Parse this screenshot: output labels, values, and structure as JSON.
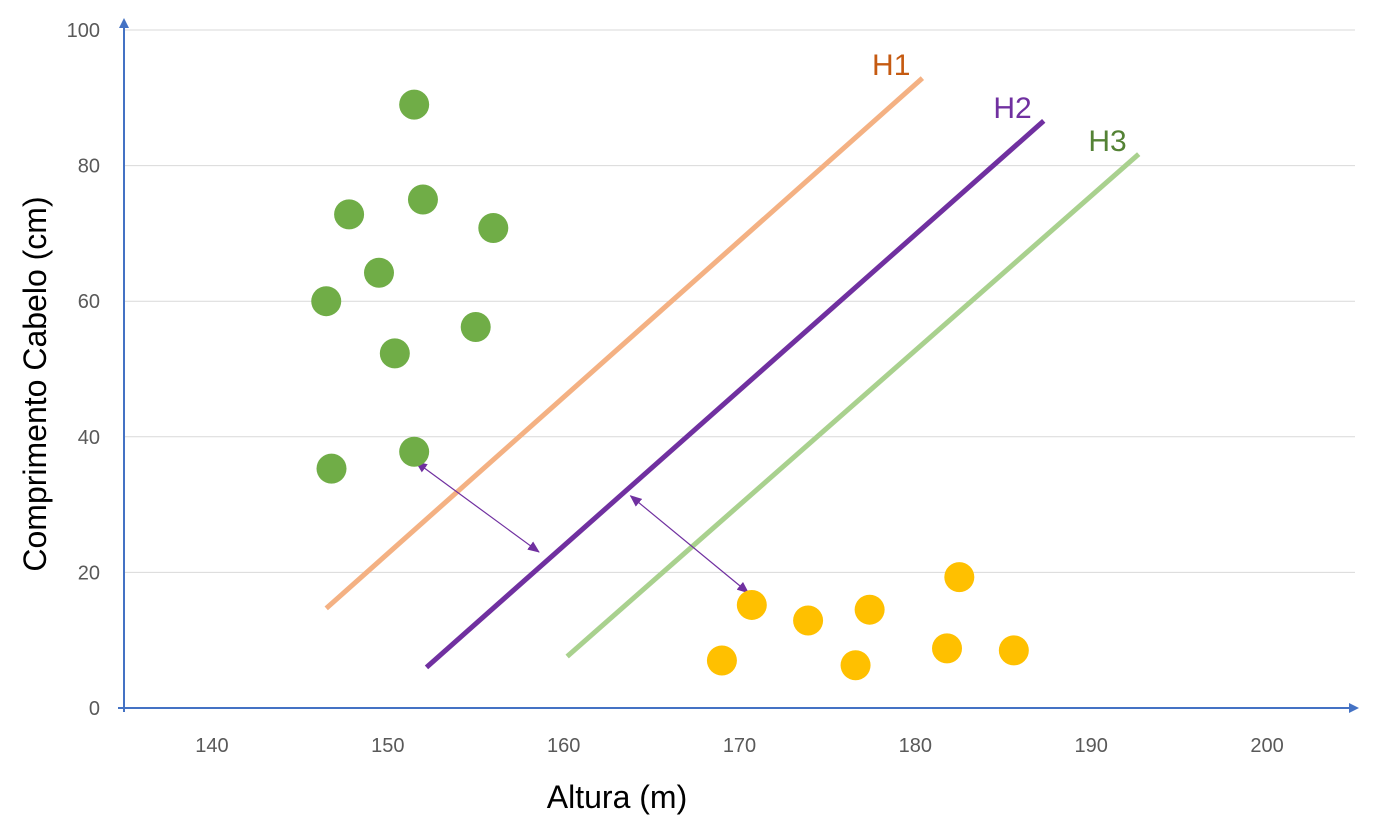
{
  "chart_data": {
    "type": "scatter",
    "xlabel": "Altura (m)",
    "ylabel": "Comprimento Cabelo (cm)",
    "xlim": [
      135,
      205
    ],
    "ylim": [
      0,
      100
    ],
    "x_ticks": [
      140,
      150,
      160,
      170,
      180,
      190,
      200
    ],
    "y_ticks": [
      0,
      20,
      40,
      60,
      80,
      100
    ],
    "grid": "horizontal",
    "series": [
      {
        "color": "#70AD47",
        "points": [
          {
            "x": 151.5,
            "y": 89
          },
          {
            "x": 152.0,
            "y": 75
          },
          {
            "x": 147.8,
            "y": 72.8
          },
          {
            "x": 156.0,
            "y": 70.8
          },
          {
            "x": 149.5,
            "y": 64.2
          },
          {
            "x": 146.5,
            "y": 60
          },
          {
            "x": 155.0,
            "y": 56.2
          },
          {
            "x": 150.4,
            "y": 52.3
          },
          {
            "x": 151.5,
            "y": 37.8
          },
          {
            "x": 146.8,
            "y": 35.3
          }
        ]
      },
      {
        "color": "#FFC000",
        "points": [
          {
            "x": 182.5,
            "y": 19.3
          },
          {
            "x": 170.7,
            "y": 15.2
          },
          {
            "x": 177.4,
            "y": 14.5
          },
          {
            "x": 173.9,
            "y": 12.9
          },
          {
            "x": 181.8,
            "y": 8.8
          },
          {
            "x": 185.6,
            "y": 8.5
          },
          {
            "x": 169.0,
            "y": 7.0
          },
          {
            "x": 176.6,
            "y": 6.3
          }
        ]
      }
    ],
    "lines": [
      {
        "label": "H1",
        "color": "#F4B183",
        "label_color": "#C55A11",
        "stroke": 5,
        "x1": 146.5,
        "y1": 14.7,
        "x2": 180.4,
        "y2": 92.9
      },
      {
        "label": "H2",
        "color": "#7030A0",
        "label_color": "#7030A0",
        "stroke": 5,
        "x1": 152.2,
        "y1": 6.0,
        "x2": 187.3,
        "y2": 86.6
      },
      {
        "label": "H3",
        "color": "#A9D18E",
        "label_color": "#548235",
        "stroke": 5,
        "x1": 160.2,
        "y1": 7.6,
        "x2": 192.7,
        "y2": 81.7
      }
    ],
    "arrows": [
      {
        "color": "#7030A0",
        "x1": 151.6,
        "y1": 36.3,
        "x2": 158.6,
        "y2": 23.0
      },
      {
        "color": "#7030A0",
        "x1": 163.8,
        "y1": 31.3,
        "x2": 170.5,
        "y2": 17.0
      }
    ],
    "axis_color": "#4472C4",
    "grid_color": "#D9D9D9"
  }
}
